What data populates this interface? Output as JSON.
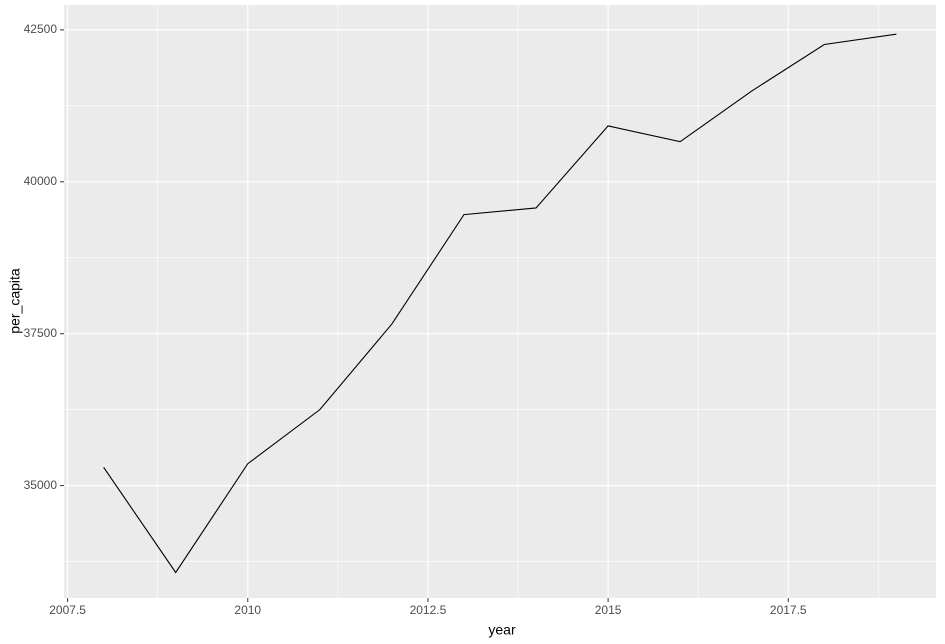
{
  "chart_data": {
    "type": "line",
    "x_label": "year",
    "y_label": "per_capita",
    "x": [
      2008,
      2009,
      2010,
      2011,
      2012,
      2013,
      2014,
      2015,
      2016,
      2017,
      2018,
      2019
    ],
    "series": [
      {
        "color": "#000000",
        "values": [
          35300,
          33570,
          35360,
          36250,
          37660,
          39460,
          39570,
          40920,
          40660,
          41500,
          42260,
          42430
        ]
      }
    ],
    "xlim": [
      2007.45,
      2019.55
    ],
    "xticks": [
      2007.5,
      2010.0,
      2012.5,
      2015.0,
      2017.5
    ],
    "ylim": [
      33150,
      42910
    ],
    "yticks": [
      35000,
      37500,
      40000,
      42500
    ],
    "grid": true
  }
}
